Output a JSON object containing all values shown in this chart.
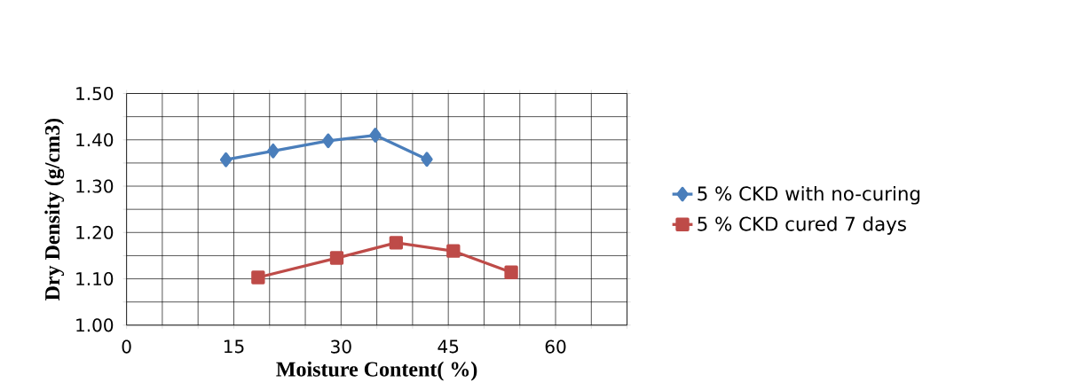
{
  "chart_data": {
    "type": "line",
    "xlabel": "Moisture Content( %)",
    "ylabel": "Dry Density (g/cm3)",
    "series": [
      {
        "name": "5 % CKD with no-curing",
        "color": "#4a7ebb",
        "marker": "diamond",
        "x": [
          13.9,
          20.5,
          28.2,
          34.8,
          42.0
        ],
        "values": [
          1.357,
          1.376,
          1.398,
          1.41,
          1.358
        ]
      },
      {
        "name": "5 % CKD cured 7 days",
        "color": "#be4b48",
        "marker": "square",
        "x": [
          18.4,
          29.4,
          37.7,
          45.7,
          53.8
        ],
        "values": [
          1.103,
          1.145,
          1.178,
          1.16,
          1.114
        ]
      }
    ],
    "xlim": [
      0,
      70
    ],
    "xticks": [
      0,
      {
        "value": 5,
        "label": null
      },
      {
        "value": 10,
        "label": null
      },
      15,
      {
        "value": 20,
        "label": null
      },
      {
        "value": 25,
        "label": null
      },
      30,
      {
        "value": 35,
        "label": null
      },
      {
        "value": 40,
        "label": null
      },
      45,
      {
        "value": 50,
        "label": null
      },
      {
        "value": 55,
        "label": null
      },
      60,
      {
        "value": 65,
        "label": null
      },
      {
        "value": 70,
        "label": null
      }
    ],
    "ylim": [
      1.0,
      1.5
    ],
    "yticks": [
      {
        "value": 1.0,
        "label": "1.00"
      },
      {
        "value": 1.05,
        "label": null
      },
      {
        "value": 1.1,
        "label": "1.10"
      },
      {
        "value": 1.15,
        "label": null
      },
      {
        "value": 1.2,
        "label": "1.20"
      },
      {
        "value": 1.25,
        "label": null
      },
      {
        "value": 1.3,
        "label": "1.30"
      },
      {
        "value": 1.35,
        "label": null
      },
      {
        "value": 1.4,
        "label": "1.40"
      },
      {
        "value": 1.45,
        "label": null
      },
      {
        "value": 1.5,
        "label": "1.50"
      }
    ],
    "grid": true,
    "legend": "right",
    "line_style": "solid"
  }
}
